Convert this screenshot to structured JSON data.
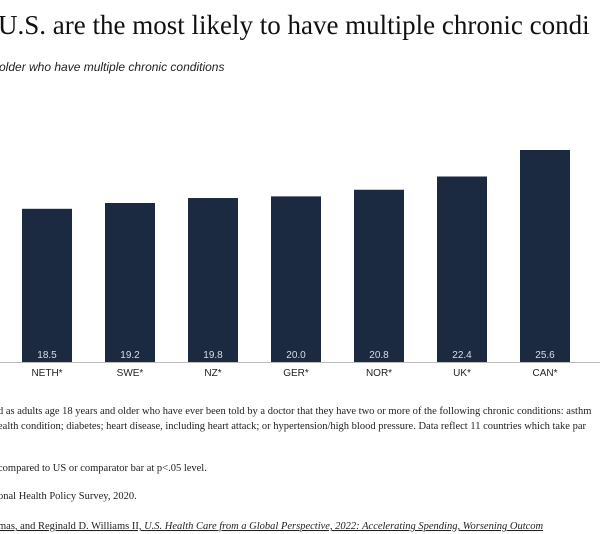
{
  "chart_data": {
    "type": "bar",
    "title": "U.S. are the most likely to have multiple chronic condi",
    "subtitle": "older who have multiple chronic conditions",
    "categories": [
      "NETH*",
      "SWE*",
      "NZ*",
      "GER*",
      "NOR*",
      "UK*",
      "CAN*"
    ],
    "values": [
      18.5,
      19.2,
      19.8,
      20.0,
      20.8,
      22.4,
      25.6
    ],
    "value_labels": [
      "18.5",
      "19.2",
      "19.8",
      "20.0",
      "20.8",
      "22.4",
      "25.6"
    ],
    "color": "#1b2a40",
    "notes": [
      "d as adults age 18 years and older who have ever been told by a doctor that they have two or more of the following chronic conditions: asthm",
      "ealth condition; diabetes; heart disease, including heart attack; or hypertension/high blood pressure. Data reflect 11 countries which take par",
      "compared to US or comparator bar at p<.05 level.",
      "onal Health Policy Survey, 2020."
    ],
    "citation": {
      "authors": "mas, and Reginald D. Williams II, ",
      "work": "U.S. Health Care from a Global Perspective, 2022: Accelerating Spending, Worsening Outcom"
    }
  }
}
